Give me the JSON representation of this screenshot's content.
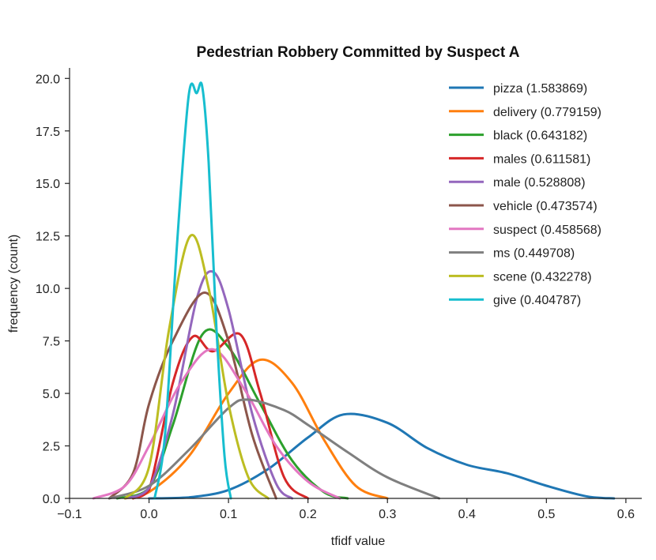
{
  "chart_data": {
    "type": "line",
    "title": "Pedestrian Robbery Committed by Suspect A",
    "xlabel": "tfidf value",
    "ylabel": "frequency (count)",
    "xlim": [
      -0.1,
      0.62
    ],
    "ylim": [
      0,
      20.5
    ],
    "xticks": [
      "−0.1",
      "0.0",
      "0.1",
      "0.2",
      "0.3",
      "0.4",
      "0.5",
      "0.6"
    ],
    "xtick_values": [
      -0.1,
      0.0,
      0.1,
      0.2,
      0.3,
      0.4,
      0.5,
      0.6
    ],
    "yticks": [
      "0.0",
      "2.5",
      "5.0",
      "7.5",
      "10.0",
      "12.5",
      "15.0",
      "17.5",
      "20.0"
    ],
    "ytick_values": [
      0,
      2.5,
      5.0,
      7.5,
      10.0,
      12.5,
      15.0,
      17.5,
      20.0
    ],
    "legend_position": "top-right",
    "series": [
      {
        "name": "pizza (1.583869)",
        "color": "#1f77b4",
        "x": [
          0.0,
          0.05,
          0.1,
          0.15,
          0.2,
          0.245,
          0.3,
          0.35,
          0.4,
          0.45,
          0.5,
          0.55,
          0.585
        ],
        "y": [
          0.0,
          0.05,
          0.4,
          1.4,
          2.9,
          4.0,
          3.6,
          2.4,
          1.6,
          1.2,
          0.6,
          0.1,
          0.0
        ]
      },
      {
        "name": "delivery (0.779159)",
        "color": "#ff7f0e",
        "x": [
          -0.03,
          0.0,
          0.05,
          0.1,
          0.14,
          0.18,
          0.22,
          0.26,
          0.3
        ],
        "y": [
          0.0,
          0.3,
          2.0,
          5.0,
          6.6,
          5.5,
          2.8,
          0.6,
          0.0
        ]
      },
      {
        "name": "black (0.643182)",
        "color": "#2ca02c",
        "x": [
          -0.04,
          0.0,
          0.03,
          0.067,
          0.1,
          0.14,
          0.18,
          0.22,
          0.25
        ],
        "y": [
          0.0,
          0.5,
          3.5,
          7.8,
          7.2,
          4.5,
          1.8,
          0.3,
          0.0
        ]
      },
      {
        "name": "males (0.611581)",
        "color": "#d62728",
        "x": [
          -0.02,
          0.0,
          0.03,
          0.055,
          0.08,
          0.115,
          0.14,
          0.17,
          0.2
        ],
        "y": [
          0.0,
          0.4,
          5.5,
          7.7,
          7.0,
          7.8,
          5.0,
          1.0,
          0.0
        ]
      },
      {
        "name": "male (0.528808)",
        "color": "#9467bd",
        "x": [
          -0.03,
          0.0,
          0.03,
          0.06,
          0.08,
          0.1,
          0.13,
          0.16,
          0.18
        ],
        "y": [
          0.0,
          0.5,
          4.0,
          9.5,
          10.8,
          9.0,
          4.0,
          0.7,
          0.0
        ]
      },
      {
        "name": "vehicle (0.473574)",
        "color": "#8c564b",
        "x": [
          -0.05,
          -0.02,
          0.0,
          0.03,
          0.07,
          0.1,
          0.13,
          0.16
        ],
        "y": [
          0.0,
          1.2,
          4.5,
          7.5,
          9.8,
          7.5,
          3.0,
          0.0
        ]
      },
      {
        "name": "suspect (0.458568)",
        "color": "#e377c2",
        "x": [
          -0.07,
          -0.03,
          0.0,
          0.04,
          0.08,
          0.12,
          0.16,
          0.2,
          0.24
        ],
        "y": [
          0.0,
          0.6,
          2.5,
          5.5,
          7.1,
          5.2,
          2.5,
          0.8,
          0.0
        ]
      },
      {
        "name": "ms (0.449708)",
        "color": "#7f7f7f",
        "x": [
          -0.05,
          0.0,
          0.05,
          0.1,
          0.125,
          0.17,
          0.2,
          0.25,
          0.3,
          0.365
        ],
        "y": [
          0.0,
          0.6,
          2.3,
          4.3,
          4.7,
          4.2,
          3.5,
          2.2,
          1.0,
          0.0
        ]
      },
      {
        "name": "scene (0.432278)",
        "color": "#bcbd22",
        "x": [
          -0.03,
          0.0,
          0.025,
          0.052,
          0.075,
          0.1,
          0.125,
          0.15
        ],
        "y": [
          0.0,
          1.5,
          8.0,
          12.5,
          10.0,
          4.5,
          1.0,
          0.0
        ]
      },
      {
        "name": "give (0.404787)",
        "color": "#17becf",
        "x": [
          0.007,
          0.02,
          0.035,
          0.05,
          0.06,
          0.067,
          0.075,
          0.085,
          0.095,
          0.103
        ],
        "y": [
          0.0,
          3.0,
          12.0,
          19.2,
          19.3,
          19.6,
          16.0,
          8.0,
          2.0,
          0.0
        ]
      }
    ]
  }
}
